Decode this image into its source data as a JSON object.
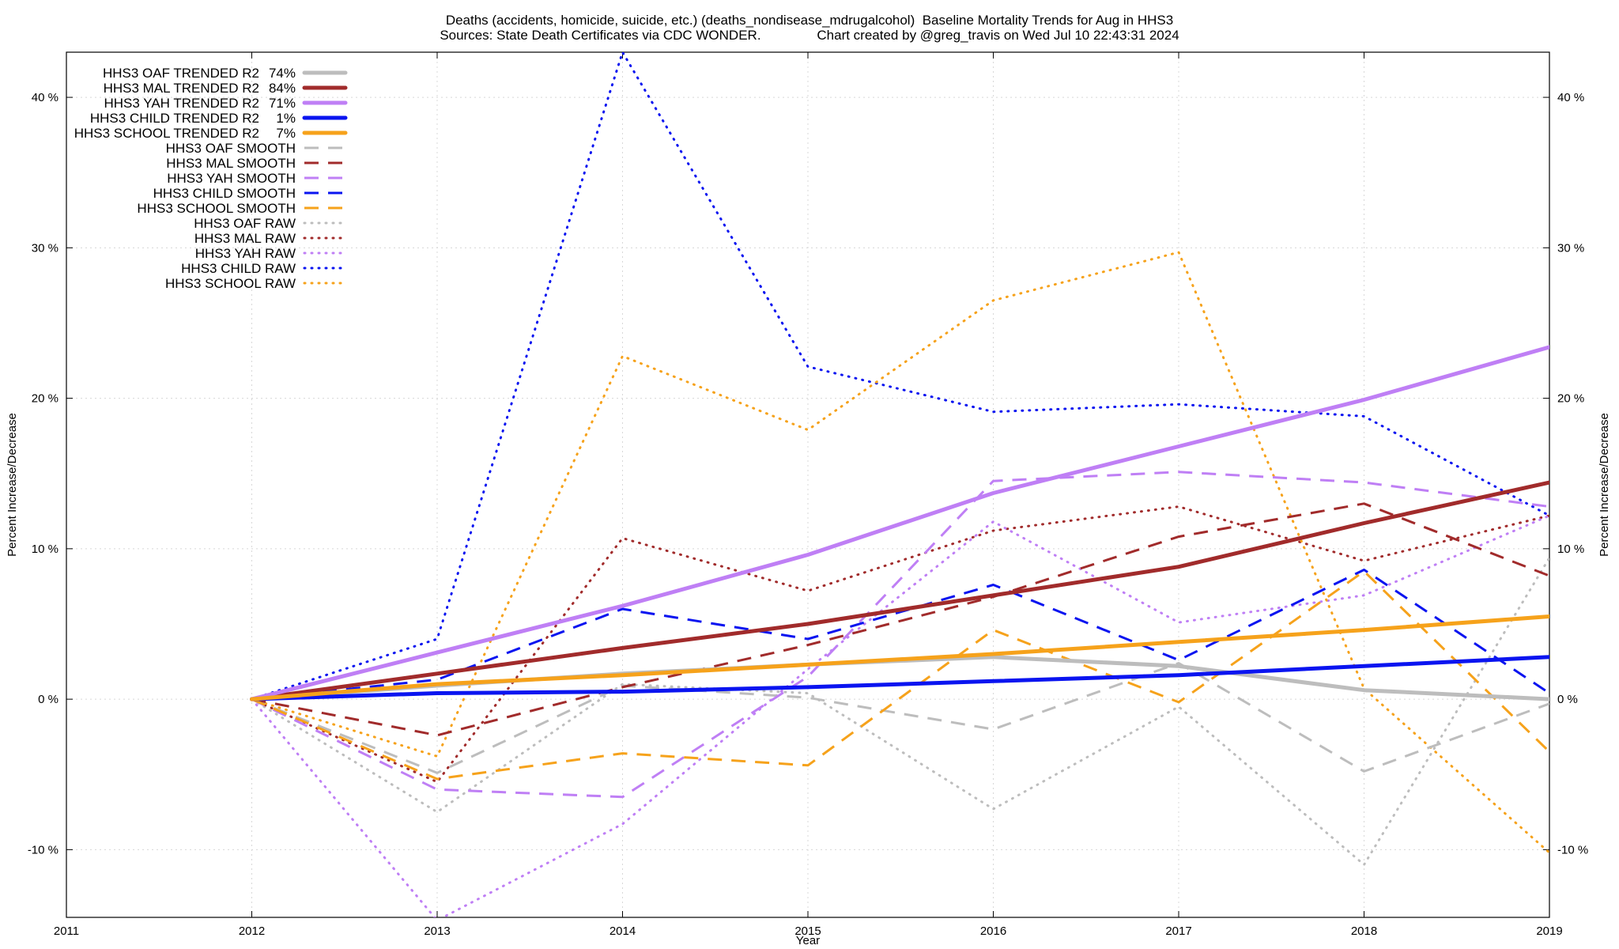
{
  "chart_data": {
    "type": "line",
    "title": "Deaths (accidents, homicide, suicide, etc.) (deaths_nondisease_mdrugalcohol)  Baseline Mortality Trends for Aug in HHS3",
    "subtitle": "Sources: State Death Certificates via CDC WONDER.               Chart created by @greg_travis on Wed Jul 10 22:43:31 2024",
    "xlabel": "Year",
    "ylabel": "Percent Increase/Decrease",
    "ylabel_right": "Percent Increase/Decrease",
    "xlim": [
      2011,
      2019
    ],
    "ylim": [
      -14.5,
      43
    ],
    "x_ticks": [
      "2011",
      "2012",
      "2013",
      "2014",
      "2015",
      "2016",
      "2017",
      "2018",
      "2019"
    ],
    "y_ticks": [
      {
        "value": -10,
        "label": "-10 %"
      },
      {
        "value": 0,
        "label": "0 %"
      },
      {
        "value": 10,
        "label": "10 %"
      },
      {
        "value": 20,
        "label": "20 %"
      },
      {
        "value": 30,
        "label": "30 %"
      },
      {
        "value": 40,
        "label": "40 %"
      }
    ],
    "grid": true,
    "legend_position": "top-left",
    "series": [
      {
        "name": "HHS3 OAF TRENDED R2",
        "r2": "74%",
        "style": "solid",
        "color": "#bdbdbd",
        "x": [
          2012,
          2013,
          2014,
          2015,
          2016,
          2017,
          2018,
          2019
        ],
        "y": [
          0,
          0.9,
          1.7,
          2.3,
          2.8,
          2.2,
          0.6,
          0.0
        ]
      },
      {
        "name": "HHS3 MAL TRENDED R2",
        "r2": "84%",
        "style": "solid",
        "color": "#a12b2b",
        "x": [
          2012,
          2013,
          2014,
          2015,
          2016,
          2017,
          2018,
          2019
        ],
        "y": [
          0,
          1.7,
          3.4,
          5.0,
          6.9,
          8.8,
          11.7,
          14.4
        ]
      },
      {
        "name": "HHS3 YAH TRENDED R2",
        "r2": "71%",
        "style": "solid",
        "color": "#bf7ff5",
        "x": [
          2012,
          2013,
          2014,
          2015,
          2016,
          2017,
          2018,
          2019
        ],
        "y": [
          0,
          3.1,
          6.2,
          9.6,
          13.7,
          16.8,
          19.9,
          23.4
        ]
      },
      {
        "name": "HHS3 CHILD TRENDED R2",
        "r2": "1%",
        "style": "solid",
        "color": "#0a14f0",
        "x": [
          2012,
          2013,
          2014,
          2015,
          2016,
          2017,
          2018,
          2019
        ],
        "y": [
          0,
          0.4,
          0.5,
          0.8,
          1.2,
          1.6,
          2.2,
          2.8
        ]
      },
      {
        "name": "HHS3 SCHOOL TRENDED R2",
        "r2": "7%",
        "style": "solid",
        "color": "#f6a21b",
        "x": [
          2012,
          2013,
          2014,
          2015,
          2016,
          2017,
          2018,
          2019
        ],
        "y": [
          0,
          1.0,
          1.6,
          2.3,
          3.0,
          3.8,
          4.6,
          5.5
        ]
      },
      {
        "name": "HHS3 OAF SMOOTH",
        "r2": "",
        "style": "dashed",
        "color": "#bdbdbd",
        "x": [
          2012,
          2013,
          2014,
          2015,
          2016,
          2017,
          2018,
          2019
        ],
        "y": [
          0,
          -4.9,
          0.9,
          0.1,
          -2.0,
          2.4,
          -4.8,
          -0.3
        ]
      },
      {
        "name": "HHS3 MAL SMOOTH",
        "r2": "",
        "style": "dashed",
        "color": "#a12b2b",
        "x": [
          2012,
          2013,
          2014,
          2015,
          2016,
          2017,
          2018,
          2019
        ],
        "y": [
          0,
          -2.4,
          0.8,
          3.6,
          6.8,
          10.8,
          13.0,
          8.2
        ]
      },
      {
        "name": "HHS3 YAH SMOOTH",
        "r2": "",
        "style": "dashed",
        "color": "#bf7ff5",
        "x": [
          2012,
          2013,
          2014,
          2015,
          2016,
          2017,
          2018,
          2019
        ],
        "y": [
          0,
          -6.0,
          -6.5,
          1.5,
          14.5,
          15.1,
          14.4,
          12.8
        ]
      },
      {
        "name": "HHS3 CHILD SMOOTH",
        "r2": "",
        "style": "dashed",
        "color": "#0a14f0",
        "x": [
          2012,
          2013,
          2014,
          2015,
          2016,
          2017,
          2018,
          2019
        ],
        "y": [
          0,
          1.3,
          6.0,
          4.0,
          7.6,
          2.6,
          8.6,
          0.4
        ]
      },
      {
        "name": "HHS3 SCHOOL SMOOTH",
        "r2": "",
        "style": "dashed",
        "color": "#f6a21b",
        "x": [
          2012,
          2013,
          2014,
          2015,
          2016,
          2017,
          2018,
          2019
        ],
        "y": [
          0,
          -5.3,
          -3.6,
          -4.4,
          4.6,
          -0.2,
          8.5,
          -3.5
        ]
      },
      {
        "name": "HHS3 OAF RAW",
        "r2": "",
        "style": "dotted",
        "color": "#bdbdbd",
        "x": [
          2012,
          2013,
          2014,
          2015,
          2016,
          2017,
          2018,
          2019
        ],
        "y": [
          0,
          -7.5,
          1.0,
          0.4,
          -7.3,
          -0.5,
          -11.0,
          9.4
        ]
      },
      {
        "name": "HHS3 MAL RAW",
        "r2": "",
        "style": "dotted",
        "color": "#a12b2b",
        "x": [
          2012,
          2013,
          2014,
          2015,
          2016,
          2017,
          2018,
          2019
        ],
        "y": [
          0,
          -5.5,
          10.7,
          7.2,
          11.2,
          12.8,
          9.2,
          12.2
        ]
      },
      {
        "name": "HHS3 YAH RAW",
        "r2": "",
        "style": "dotted",
        "color": "#bf7ff5",
        "x": [
          2012,
          2013,
          2014,
          2015,
          2016,
          2017,
          2018,
          2019
        ],
        "y": [
          0,
          -14.7,
          -8.3,
          2.0,
          11.8,
          5.1,
          6.9,
          12.2
        ]
      },
      {
        "name": "HHS3 CHILD RAW",
        "r2": "",
        "style": "dotted",
        "color": "#0a14f0",
        "x": [
          2012,
          2013,
          2014,
          2015,
          2016,
          2017,
          2018,
          2019
        ],
        "y": [
          0,
          4.0,
          43.0,
          22.1,
          19.1,
          19.6,
          18.8,
          12.2
        ]
      },
      {
        "name": "HHS3 SCHOOL RAW",
        "r2": "",
        "style": "dotted",
        "color": "#f6a21b",
        "x": [
          2012,
          2013,
          2014,
          2015,
          2016,
          2017,
          2018,
          2019
        ],
        "y": [
          0,
          -3.8,
          22.8,
          17.9,
          26.5,
          29.7,
          0.7,
          -10.2
        ]
      }
    ]
  }
}
